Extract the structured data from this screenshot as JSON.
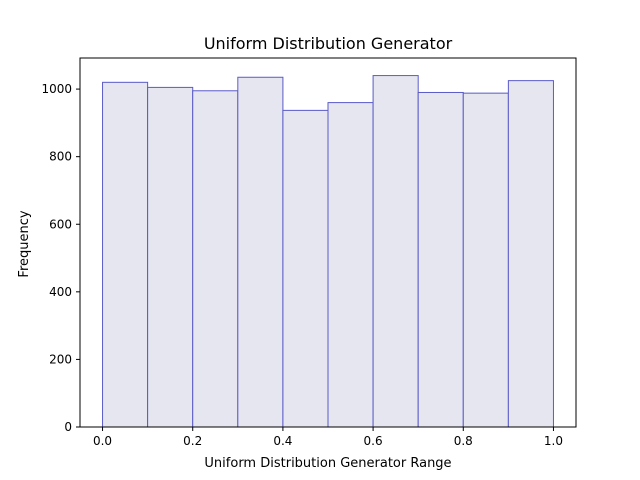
{
  "chart_data": {
    "type": "bar",
    "title": "Uniform Distribution Generator",
    "xlabel": "Uniform Distribution Generator Range",
    "ylabel": "Frequency",
    "bin_edges": [
      0.0,
      0.1,
      0.2,
      0.3,
      0.4,
      0.5,
      0.6,
      0.7,
      0.8,
      0.9,
      1.0
    ],
    "values": [
      1020,
      1005,
      995,
      1035,
      937,
      960,
      1040,
      990,
      988,
      1025
    ],
    "xlim": [
      -0.05,
      1.05
    ],
    "ylim": [
      0,
      1092
    ],
    "xticks": [
      0.0,
      0.2,
      0.4,
      0.6,
      0.8,
      1.0
    ],
    "xtick_labels": [
      "0.0",
      "0.2",
      "0.4",
      "0.6",
      "0.8",
      "1.0"
    ],
    "yticks": [
      0,
      200,
      400,
      600,
      800,
      1000
    ],
    "ytick_labels": [
      "0",
      "200",
      "400",
      "600",
      "800",
      "1000"
    ],
    "grid": false,
    "bar_fill": "#e6e6f0",
    "bar_edge": "#5a5ac8"
  }
}
